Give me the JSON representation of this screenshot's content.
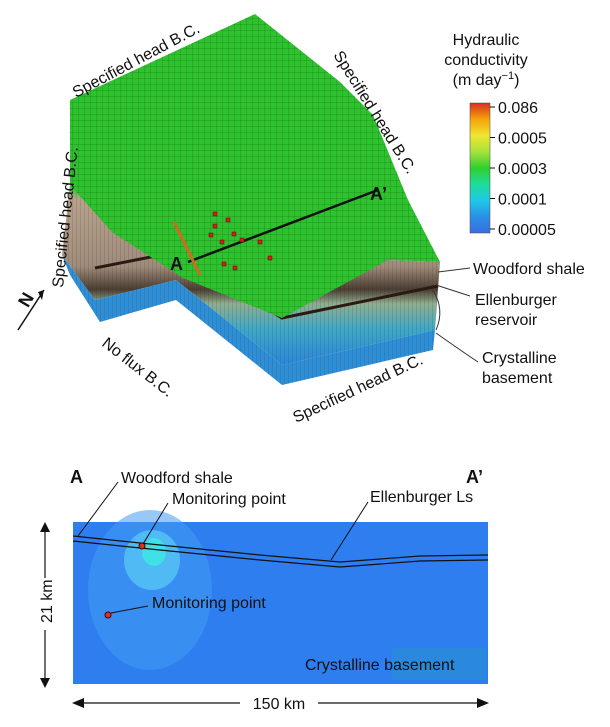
{
  "block_model": {
    "bc_top": "Specified head B.C.",
    "bc_left": "Specified head B.C.",
    "bc_right": "Specified head B.C.",
    "bc_bottom_right": "Specified head B.C.",
    "bc_bottom_left": "No flux B.C.",
    "north": "N",
    "section_start": "A",
    "section_end": "A’",
    "layers": [
      "Woodford shale",
      "Ellenburger",
      "reservoir",
      "Crystalline",
      "basement"
    ]
  },
  "colorbar": {
    "title_line1": "Hydraulic",
    "title_line2": "conductivity",
    "unit": "(m day",
    "unit_exp": "−1",
    "unit_close": ")",
    "ticks": [
      "0.086",
      "0.0005",
      "0.0003",
      "0.0001",
      "0.00005"
    ],
    "colors": [
      "#d7301f",
      "#f4a20b",
      "#f0e630",
      "#a8e23c",
      "#2fcf2f",
      "#1fdc9a",
      "#1ec9e8",
      "#2a90e6",
      "#3a6fe0"
    ]
  },
  "cross_section": {
    "left_label": "A",
    "right_label": "A’",
    "woodford": "Woodford shale",
    "monitor1": "Monitoring point",
    "monitor2": "Monitoring point",
    "ellenburger": "Ellenburger Ls",
    "basement": "Crystalline basement",
    "depth": "21 km",
    "width": "150 km"
  }
}
